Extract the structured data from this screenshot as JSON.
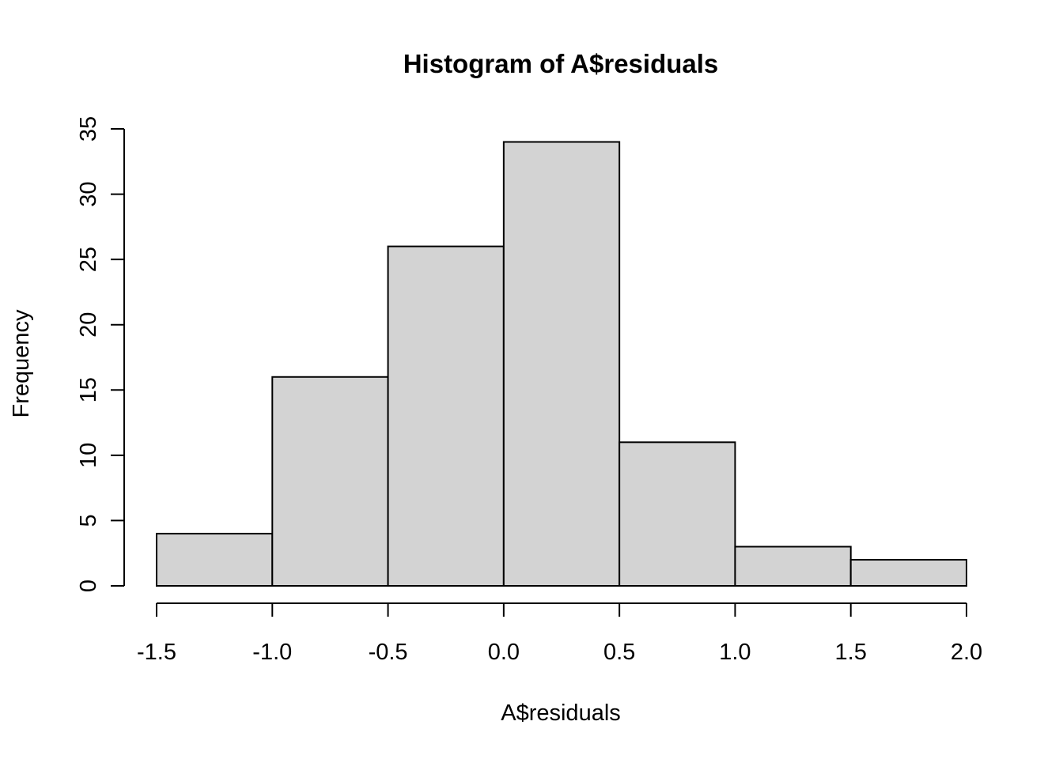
{
  "chart_data": {
    "type": "bar",
    "title": "Histogram of A$residuals",
    "xlabel": "A$residuals",
    "ylabel": "Frequency",
    "bins": [
      {
        "x0": -1.5,
        "x1": -1.0,
        "count": 4
      },
      {
        "x0": -1.0,
        "x1": -0.5,
        "count": 16
      },
      {
        "x0": -0.5,
        "x1": 0.0,
        "count": 26
      },
      {
        "x0": 0.0,
        "x1": 0.5,
        "count": 34
      },
      {
        "x0": 0.5,
        "x1": 1.0,
        "count": 11
      },
      {
        "x0": 1.0,
        "x1": 1.5,
        "count": 3
      },
      {
        "x0": 1.5,
        "x1": 2.0,
        "count": 2
      }
    ],
    "xlim": [
      -1.5,
      2.0
    ],
    "ylim": [
      0,
      35
    ],
    "x_ticks": [
      {
        "value": -1.5,
        "label": "-1.5"
      },
      {
        "value": -1.0,
        "label": "-1.0"
      },
      {
        "value": -0.5,
        "label": "-0.5"
      },
      {
        "value": 0.0,
        "label": "0.0"
      },
      {
        "value": 0.5,
        "label": "0.5"
      },
      {
        "value": 1.0,
        "label": "1.0"
      },
      {
        "value": 1.5,
        "label": "1.5"
      },
      {
        "value": 2.0,
        "label": "2.0"
      }
    ],
    "y_ticks": [
      {
        "value": 0,
        "label": "0"
      },
      {
        "value": 5,
        "label": "5"
      },
      {
        "value": 10,
        "label": "10"
      },
      {
        "value": 15,
        "label": "15"
      },
      {
        "value": 20,
        "label": "20"
      },
      {
        "value": 25,
        "label": "25"
      },
      {
        "value": 30,
        "label": "30"
      },
      {
        "value": 35,
        "label": "35"
      }
    ],
    "grid": false,
    "legend": "none",
    "colors": {
      "bar_fill": "#d3d3d3",
      "bar_stroke": "#000000",
      "axis": "#000000",
      "background": "#ffffff"
    }
  }
}
